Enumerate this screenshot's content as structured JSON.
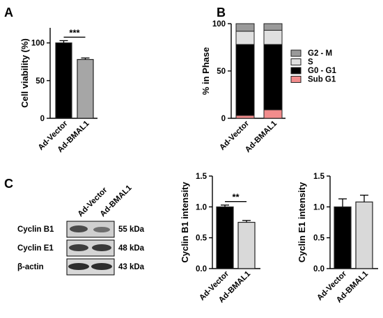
{
  "panel_labels": {
    "a": "A",
    "b": "B",
    "c": "C"
  },
  "blot": {
    "lanes": [
      "Ad-Vector",
      "Ad-BMAL1"
    ],
    "rows": [
      {
        "protein": "Cyclin B1",
        "kda": "55 kDa"
      },
      {
        "protein": "Cyclin E1",
        "kda": "48 kDa"
      },
      {
        "protein": "β-actin",
        "kda": "43 kDa"
      }
    ]
  },
  "chart_data": [
    {
      "id": "viability",
      "type": "bar",
      "categories": [
        "Ad-Vector",
        "Ad-BMAL1"
      ],
      "values": [
        100,
        78
      ],
      "errors": [
        3,
        2
      ],
      "colors": [
        "#000000",
        "#a6a6a6"
      ],
      "ylabel": "Cell viability (%)",
      "ylim": [
        0,
        120
      ],
      "yticks": [
        0,
        50,
        100
      ],
      "significance": "***"
    },
    {
      "id": "phase",
      "type": "bar",
      "stacked": true,
      "categories": [
        "Ad-Vector",
        "Ad-BMAL1"
      ],
      "ylabel": "% in Phase",
      "ylim": [
        0,
        100
      ],
      "yticks": [
        0,
        50,
        100
      ],
      "legend_position": "right",
      "series": [
        {
          "name": "Sub G1",
          "values": [
            3,
            9
          ],
          "color": "#f28c8c"
        },
        {
          "name": "G0 - G1",
          "values": [
            75,
            69
          ],
          "color": "#000000"
        },
        {
          "name": "S",
          "values": [
            14,
            15
          ],
          "color": "#e0e0e0"
        },
        {
          "name": "G2 - M",
          "values": [
            8,
            7
          ],
          "color": "#9a9a9a"
        }
      ]
    },
    {
      "id": "cyclinB1",
      "type": "bar",
      "categories": [
        "Ad-Vector",
        "Ad-BMAL1"
      ],
      "values": [
        1.0,
        0.75
      ],
      "errors": [
        0.03,
        0.03
      ],
      "colors": [
        "#000000",
        "#d9d9d9"
      ],
      "ylabel": "Cyclin B1 intensity",
      "ylim": [
        0,
        1.5
      ],
      "yticks": [
        "0.0",
        "0.5",
        "1.0",
        "1.5"
      ],
      "significance": "**"
    },
    {
      "id": "cyclinE1",
      "type": "bar",
      "categories": [
        "Ad-Vector",
        "Ad-BMAL1"
      ],
      "values": [
        1.0,
        1.08
      ],
      "errors": [
        0.13,
        0.11
      ],
      "colors": [
        "#000000",
        "#d9d9d9"
      ],
      "ylabel": "Cyclin E1 intensity",
      "ylim": [
        0,
        1.5
      ],
      "yticks": [
        "0.0",
        "0.5",
        "1.0",
        "1.5"
      ]
    }
  ]
}
